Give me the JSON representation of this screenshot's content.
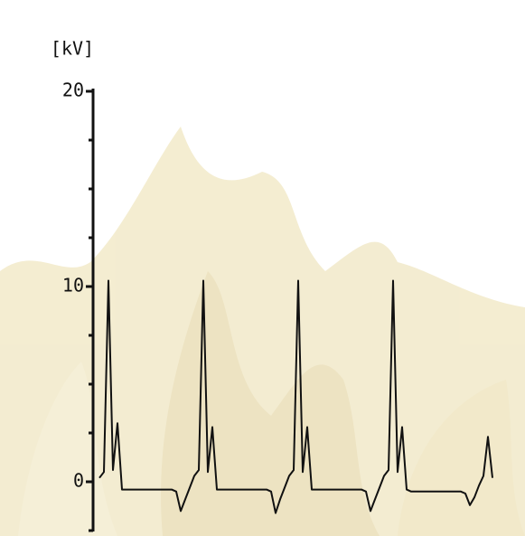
{
  "chart_data": {
    "type": "line",
    "ylabel": "[kV]",
    "color": "#111111",
    "categories": [
      null,
      null,
      null,
      null,
      null,
      null,
      null,
      null,
      null,
      null,
      null,
      null,
      null,
      null,
      null,
      null,
      null,
      null,
      null,
      null,
      null,
      null,
      null,
      null,
      null,
      null,
      null,
      null,
      null,
      null,
      null,
      null,
      null,
      null,
      null,
      null,
      null,
      null,
      null,
      null,
      null,
      null,
      null,
      null,
      null,
      null,
      null,
      null,
      null,
      null,
      null,
      null,
      null,
      null,
      null,
      null,
      null,
      null,
      null,
      null,
      null,
      null,
      null,
      null,
      null,
      null,
      null,
      null,
      null,
      null,
      null,
      null,
      null,
      null,
      null,
      null,
      null,
      null,
      null,
      null,
      null,
      null,
      null,
      null,
      null,
      null,
      null,
      null
    ],
    "values": [
      0.2,
      0.5,
      10.3,
      0.6,
      3.0,
      -0.4,
      -0.4,
      -0.4,
      -0.4,
      -0.4,
      -0.4,
      -0.4,
      -0.4,
      -0.4,
      -0.4,
      -0.4,
      -0.4,
      -0.5,
      -1.5,
      -0.9,
      -0.3,
      0.3,
      0.6,
      10.3,
      0.5,
      2.8,
      -0.4,
      -0.4,
      -0.4,
      -0.4,
      -0.4,
      -0.4,
      -0.4,
      -0.4,
      -0.4,
      -0.4,
      -0.4,
      -0.4,
      -0.5,
      -1.6,
      -0.9,
      -0.3,
      0.3,
      0.6,
      10.3,
      0.5,
      2.8,
      -0.4,
      -0.4,
      -0.4,
      -0.4,
      -0.4,
      -0.4,
      -0.4,
      -0.4,
      -0.4,
      -0.4,
      -0.4,
      -0.4,
      -0.5,
      -1.5,
      -0.9,
      -0.3,
      0.3,
      0.6,
      10.3,
      0.5,
      2.8,
      -0.4,
      -0.5,
      -0.5,
      -0.5,
      -0.5,
      -0.5,
      -0.5,
      -0.5,
      -0.5,
      -0.5,
      -0.5,
      -0.5,
      -0.5,
      -0.6,
      -1.2,
      -0.8,
      -0.2,
      0.3,
      2.3,
      0.2
    ],
    "ylim": [
      -2.5,
      20
    ],
    "yticks": [
      0,
      10,
      20
    ],
    "minor_yticks": [
      -2.5,
      2.5,
      5,
      7.5,
      12.5,
      15,
      17.5
    ]
  }
}
